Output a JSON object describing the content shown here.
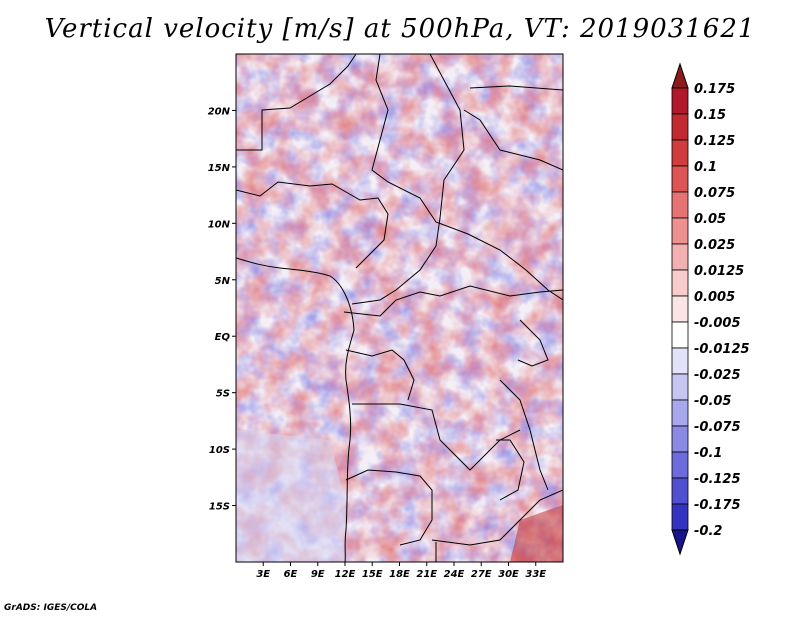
{
  "title": "Vertical velocity [m/s] at 500hPa, VT: 2019031621",
  "credit": "GrADS: IGES/COLA",
  "map": {
    "lon_range": [
      0,
      36
    ],
    "lat_range": [
      -20,
      25
    ],
    "lat_ticks": [
      {
        "value": 20,
        "label": "20N"
      },
      {
        "value": 15,
        "label": "15N"
      },
      {
        "value": 10,
        "label": "10N"
      },
      {
        "value": 5,
        "label": "5N"
      },
      {
        "value": 0,
        "label": "EQ"
      },
      {
        "value": -5,
        "label": "5S"
      },
      {
        "value": -10,
        "label": "10S"
      },
      {
        "value": -15,
        "label": "15S"
      }
    ],
    "lon_ticks": [
      {
        "value": 3,
        "label": "3E"
      },
      {
        "value": 6,
        "label": "6E"
      },
      {
        "value": 9,
        "label": "9E"
      },
      {
        "value": 12,
        "label": "12E"
      },
      {
        "value": 15,
        "label": "15E"
      },
      {
        "value": 18,
        "label": "18E"
      },
      {
        "value": 21,
        "label": "21E"
      },
      {
        "value": 24,
        "label": "24E"
      },
      {
        "value": 27,
        "label": "27E"
      },
      {
        "value": 30,
        "label": "30E"
      },
      {
        "value": 33,
        "label": "33E"
      }
    ]
  },
  "colorbar": {
    "levels": [
      {
        "label": "0.175",
        "color": "#b2182b"
      },
      {
        "label": "0.15",
        "color": "#c22a32"
      },
      {
        "label": "0.125",
        "color": "#d13c3c"
      },
      {
        "label": "0.1",
        "color": "#dd5454"
      },
      {
        "label": "0.075",
        "color": "#e57373"
      },
      {
        "label": "0.05",
        "color": "#ec9090"
      },
      {
        "label": "0.025",
        "color": "#f3b0b0"
      },
      {
        "label": "0.0125",
        "color": "#f8cccc"
      },
      {
        "label": "0.005",
        "color": "#fbe4e4"
      },
      {
        "label": "-0.005",
        "color": "#ffffff"
      },
      {
        "label": "-0.0125",
        "color": "#e2e2f8"
      },
      {
        "label": "-0.025",
        "color": "#c6c6f2"
      },
      {
        "label": "-0.05",
        "color": "#a8a8ec"
      },
      {
        "label": "-0.075",
        "color": "#8a8ae4"
      },
      {
        "label": "-0.1",
        "color": "#6c6cdc"
      },
      {
        "label": "-0.125",
        "color": "#5050d0"
      },
      {
        "label": "-0.175",
        "color": "#3434c0"
      },
      {
        "label": "-0.2",
        "color": "#1a1aa6"
      }
    ],
    "top_color": "#8b1a1a",
    "bottom_color": "#16168c"
  }
}
